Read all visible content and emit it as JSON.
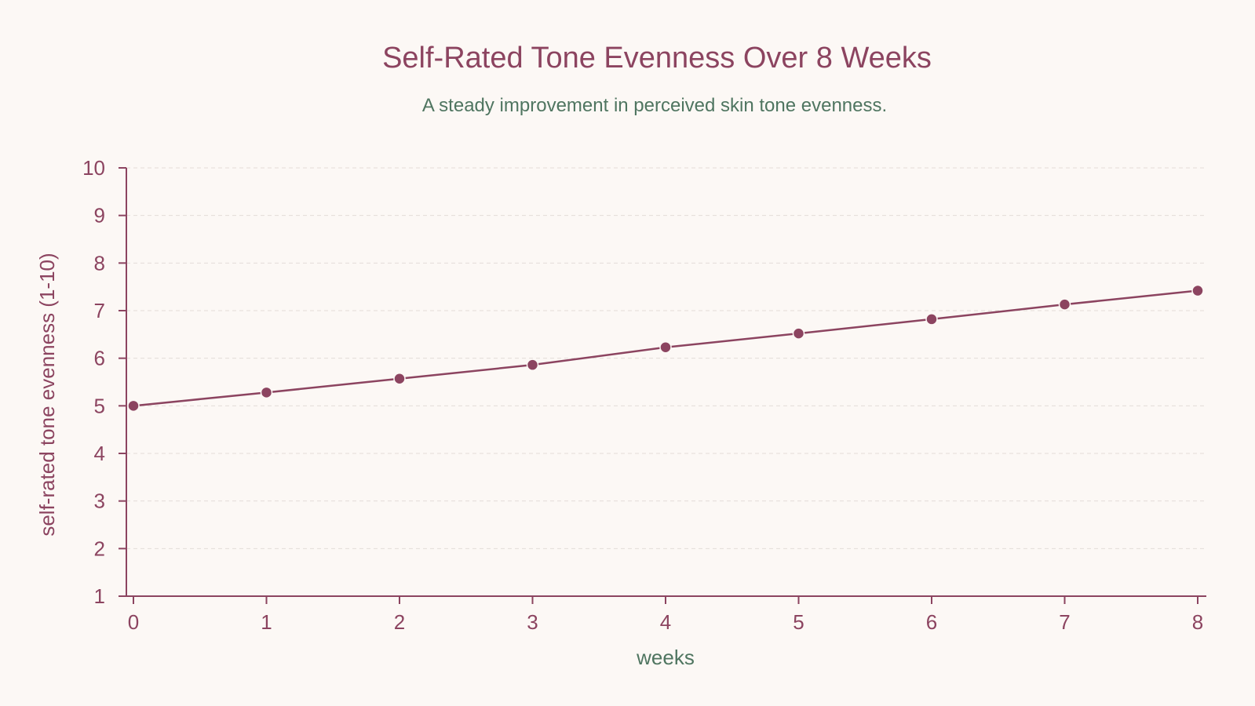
{
  "chart_data": {
    "type": "line",
    "title": "Self-Rated Tone Evenness Over 8 Weeks",
    "subtitle": "A steady improvement in perceived skin tone evenness.",
    "xlabel": "weeks",
    "ylabel": "self-rated tone evenness (1-10)",
    "xlim": [
      0,
      8
    ],
    "ylim": [
      1,
      10
    ],
    "x_ticks": [
      0,
      1,
      2,
      3,
      4,
      5,
      6,
      7,
      8
    ],
    "y_ticks": [
      1,
      2,
      3,
      4,
      5,
      6,
      7,
      8,
      9,
      10
    ],
    "grid": true,
    "series": [
      {
        "x": [
          0,
          1,
          2,
          3,
          4,
          5,
          6,
          7,
          8
        ],
        "values": [
          5.0,
          5.28,
          5.57,
          5.86,
          6.23,
          6.52,
          6.82,
          7.13,
          7.42
        ]
      }
    ],
    "colors": {
      "primary": "#8c4460",
      "secondary": "#4f7560",
      "background": "#fcf8f5",
      "grid": "#e3dcd8"
    }
  }
}
